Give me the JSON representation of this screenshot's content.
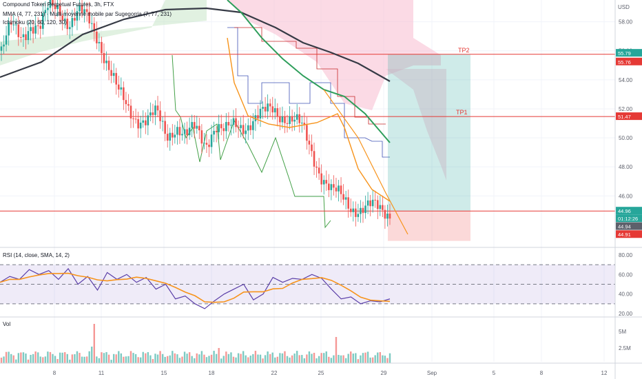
{
  "legend": {
    "line1": "Compound Token Perpetual Futures, 3h, FTX",
    "line2": "MMA (4, 77, 231) · Multi-moyenne mobile par Sugegorria (7, 77, 231)",
    "line3": "Ichimoku (20, 60, 120, 30)"
  },
  "price_axis": {
    "unit": "USD",
    "ticks": [
      "58.00",
      "56.00",
      "54.00",
      "52.00",
      "50.00",
      "48.00",
      "46.00"
    ]
  },
  "price_labels": [
    {
      "text": "55.79",
      "color": "#26a69a"
    },
    {
      "text": "55.76",
      "color": "#e53935"
    },
    {
      "text": "51.47",
      "color": "#e53935"
    },
    {
      "text": "44.96",
      "color": "#26a69a"
    },
    {
      "text": "01:12:26",
      "color": "#26a69a"
    },
    {
      "text": "44.94",
      "color": "#5d606b"
    },
    {
      "text": "44.91",
      "color": "#e53935"
    }
  ],
  "targets": {
    "tp2": "TP2",
    "tp1": "TP1"
  },
  "rsi": {
    "label": "RSI (14, close, SMA, 14, 2)",
    "ticks": [
      "80.00",
      "60.00",
      "40.00",
      "20.00"
    ]
  },
  "vol": {
    "label": "Vol",
    "ticks": [
      "5M",
      "2.5M"
    ]
  },
  "time_axis": [
    "8",
    "11",
    "15",
    "18",
    "22",
    "25",
    "29",
    "Sep",
    "5",
    "8",
    "12"
  ],
  "colors": {
    "up": "#26a69a",
    "down": "#ef5350",
    "ma_slow": "#363a45",
    "ma_mid": "#2e9e5b",
    "ma_fast": "#f7931a",
    "rsi": "#5b3fa8",
    "rsi_ma": "#f7931a"
  },
  "chart_data": {
    "type": "candlestick",
    "levels": {
      "tp2": 55.76,
      "tp1": 51.47,
      "entry": 44.96,
      "stop": 42.9
    },
    "price_range": [
      42.5,
      59.5
    ],
    "close_path": [
      56,
      57.5,
      57,
      58,
      57.5,
      59,
      59,
      58,
      58.5,
      58,
      57,
      55,
      53,
      52,
      51.5,
      51.2,
      51.5,
      50.2,
      51,
      50,
      50.5,
      49.7,
      51,
      50.2,
      50.8,
      51,
      51.3,
      51.5,
      52,
      51.7,
      51.2,
      50.5,
      49,
      47.5,
      46.2,
      45.8,
      45.4,
      45.2,
      45.1,
      45.0,
      44.96
    ],
    "rsi_range": [
      20,
      80
    ],
    "rsi_values": [
      52,
      58,
      55,
      65,
      60,
      64,
      55,
      66,
      50,
      58,
      44,
      62,
      55,
      60,
      52,
      57,
      45,
      50,
      35,
      38,
      30,
      25,
      33,
      40,
      45,
      50,
      34,
      40,
      57,
      52,
      56,
      55,
      60,
      56,
      45,
      35,
      37,
      30,
      33,
      32,
      35
    ]
  }
}
